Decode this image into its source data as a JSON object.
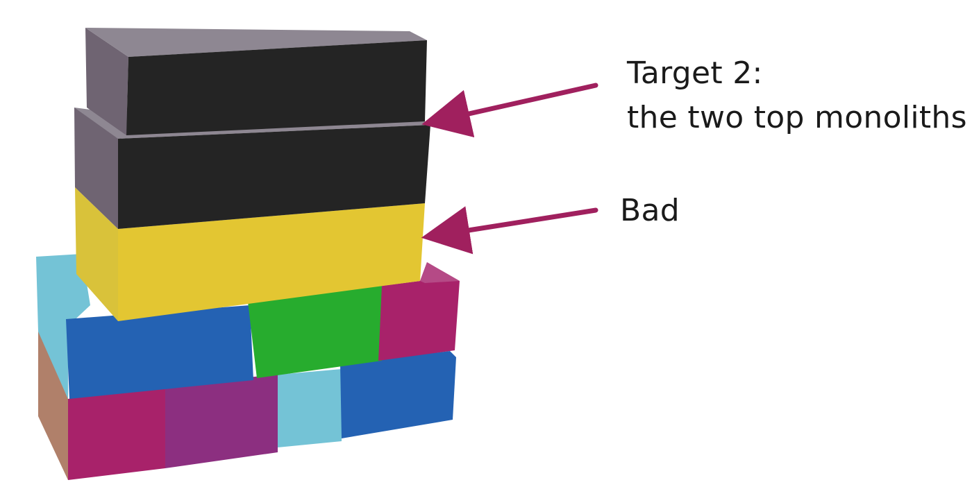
{
  "annotations": {
    "target": {
      "line1": "Target 2:",
      "line2": "the two top monoliths"
    },
    "bad": {
      "label": "Bad"
    }
  },
  "colors": {
    "arrow": "#a0205e",
    "black_block_front": "#242424",
    "black_block_side": "#6f6472",
    "black_block_top": "#8e8792",
    "yellow_block_front": "#e3c632",
    "yellow_block_side": "#d9c23a",
    "blue": "#2462b3",
    "light_blue": "#74c3d6",
    "green": "#27ac2e",
    "magenta": "#a8226a",
    "purple": "#8c2f80"
  }
}
